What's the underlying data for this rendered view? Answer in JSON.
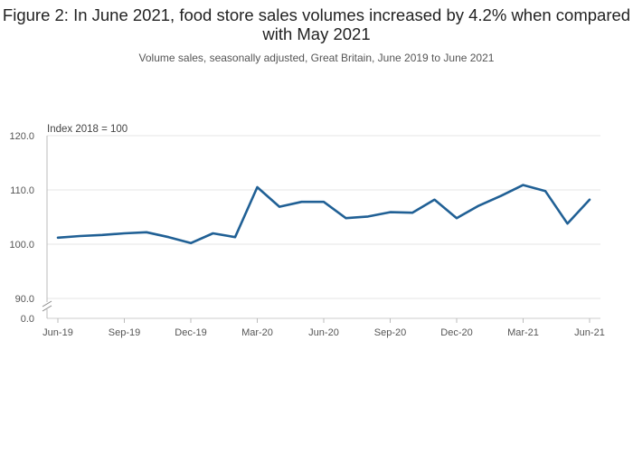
{
  "chart_data": {
    "type": "line",
    "title": "Figure 2: In June 2021, food store sales volumes increased by 4.2% when compared with May 2021",
    "subtitle": "Volume sales, seasonally adjusted, Great Britain, June 2019 to June 2021",
    "ylabel": "Index 2018 = 100",
    "xlabel": "",
    "ylim": [
      90,
      120
    ],
    "axis_break": true,
    "y_ticks": [
      "120.0",
      "110.0",
      "100.0",
      "90.0",
      "0.0"
    ],
    "x_tick_labels": [
      "Jun-19",
      "Sep-19",
      "Dec-19",
      "Mar-20",
      "Jun-20",
      "Sep-20",
      "Dec-20",
      "Mar-21",
      "Jun-21"
    ],
    "x": [
      "Jun-19",
      "Jul-19",
      "Aug-19",
      "Sep-19",
      "Oct-19",
      "Nov-19",
      "Dec-19",
      "Jan-20",
      "Feb-20",
      "Mar-20",
      "Apr-20",
      "May-20",
      "Jun-20",
      "Jul-20",
      "Aug-20",
      "Sep-20",
      "Oct-20",
      "Nov-20",
      "Dec-20",
      "Jan-21",
      "Feb-21",
      "Mar-21",
      "Apr-21",
      "May-21",
      "Jun-21"
    ],
    "series": [
      {
        "values": [
          101.2,
          101.5,
          101.7,
          102.0,
          102.2,
          101.3,
          100.2,
          102.0,
          101.3,
          110.5,
          106.9,
          107.8,
          107.8,
          104.8,
          105.1,
          105.9,
          105.8,
          108.2,
          104.8,
          107.1,
          108.9,
          110.9,
          109.8,
          103.8,
          108.2
        ],
        "color": "#206095"
      }
    ],
    "grid": true,
    "legend": "none"
  }
}
